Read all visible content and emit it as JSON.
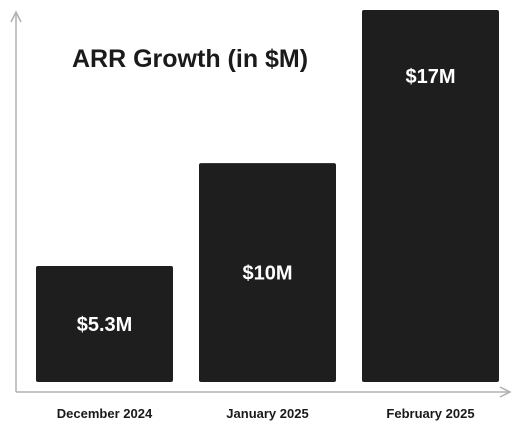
{
  "chart_data": {
    "type": "bar",
    "title": "ARR Growth (in $M)",
    "xlabel": "",
    "ylabel": "",
    "categories": [
      "December 2024",
      "January 2025",
      "February 2025"
    ],
    "values": [
      5.3,
      10,
      17
    ],
    "data_labels": [
      "$5.3M",
      "$10M",
      "$17M"
    ],
    "ylim": [
      0,
      17
    ],
    "grid": false,
    "legend": "none",
    "colors": {
      "bar": "#1e1e1e",
      "bar_label": "#ffffff",
      "axis": "#b0b0b0",
      "text": "#1a1a1a",
      "background": "#ffffff"
    }
  }
}
